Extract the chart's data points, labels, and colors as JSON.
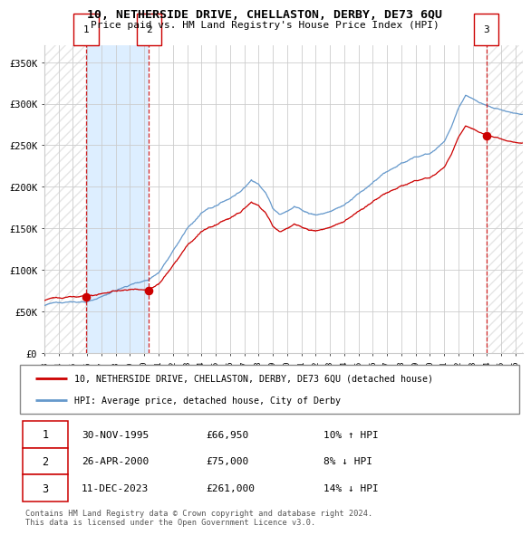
{
  "title": "10, NETHERSIDE DRIVE, CHELLASTON, DERBY, DE73 6QU",
  "subtitle": "Price paid vs. HM Land Registry's House Price Index (HPI)",
  "legend_line1": "10, NETHERSIDE DRIVE, CHELLASTON, DERBY, DE73 6QU (detached house)",
  "legend_line2": "HPI: Average price, detached house, City of Derby",
  "transactions": [
    {
      "label": "1",
      "date": "1995-11-30",
      "price": 66950,
      "pct": "10%",
      "dir": "↑",
      "x": 1995.917
    },
    {
      "label": "2",
      "date": "2000-04-26",
      "price": 75000,
      "pct": "8%",
      "dir": "↓",
      "x": 2000.322
    },
    {
      "label": "3",
      "date": "2023-12-11",
      "price": 261000,
      "pct": "14%",
      "dir": "↓",
      "x": 2023.942
    }
  ],
  "table_rows": [
    {
      "num": "1",
      "date": "30-NOV-1995",
      "price": "£66,950",
      "info": "10% ↑ HPI"
    },
    {
      "num": "2",
      "date": "26-APR-2000",
      "price": "£75,000",
      "info": "8% ↓ HPI"
    },
    {
      "num": "3",
      "date": "11-DEC-2023",
      "price": "£261,000",
      "info": "14% ↓ HPI"
    }
  ],
  "footnote1": "Contains HM Land Registry data © Crown copyright and database right 2024.",
  "footnote2": "This data is licensed under the Open Government Licence v3.0.",
  "red_color": "#cc0000",
  "blue_color": "#6699cc",
  "shading_color": "#ddeeff",
  "grid_color": "#cccccc",
  "hatch_color": "#cccccc",
  "xlim": [
    1993.0,
    2026.5
  ],
  "ylim": [
    0,
    370000
  ],
  "yticks": [
    0,
    50000,
    100000,
    150000,
    200000,
    250000,
    300000,
    350000
  ],
  "xticks": [
    "1993",
    "1994",
    "1995",
    "1996",
    "1997",
    "1998",
    "1999",
    "2000",
    "2001",
    "2002",
    "2003",
    "2004",
    "2005",
    "2006",
    "2007",
    "2008",
    "2009",
    "2010",
    "2011",
    "2012",
    "2013",
    "2014",
    "2015",
    "2016",
    "2017",
    "2018",
    "2019",
    "2020",
    "2021",
    "2022",
    "2023",
    "2024",
    "2025",
    "2026"
  ]
}
